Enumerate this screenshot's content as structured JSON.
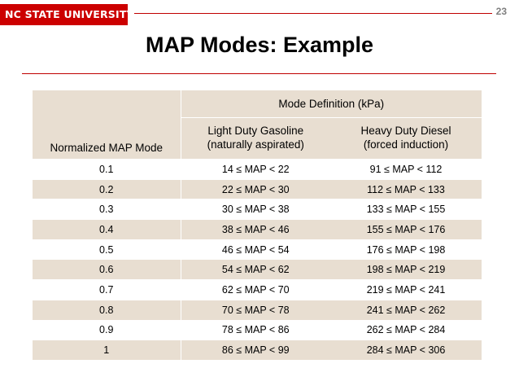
{
  "header": {
    "logo_text": "NC STATE UNIVERSITY",
    "page_number": "23",
    "brand_color": "#cc0000"
  },
  "slide": {
    "title": "MAP Modes:  Example"
  },
  "table": {
    "group_header": "Mode Definition (kPa)",
    "col1_header": "Normalized MAP Mode",
    "col2_header_line1": "Light Duty Gasoline",
    "col2_header_line2": "(naturally aspirated)",
    "col3_header_line1": "Heavy Duty Diesel",
    "col3_header_line2": "(forced induction)",
    "rows": [
      {
        "mode": "0.1",
        "gasoline": "14 ≤ MAP < 22",
        "diesel": "91 ≤ MAP < 112"
      },
      {
        "mode": "0.2",
        "gasoline": "22 ≤ MAP < 30",
        "diesel": "112 ≤ MAP < 133"
      },
      {
        "mode": "0.3",
        "gasoline": "30 ≤ MAP < 38",
        "diesel": "133 ≤ MAP < 155"
      },
      {
        "mode": "0.4",
        "gasoline": "38 ≤ MAP < 46",
        "diesel": "155 ≤ MAP < 176"
      },
      {
        "mode": "0.5",
        "gasoline": "46 ≤ MAP < 54",
        "diesel": "176 ≤ MAP < 198"
      },
      {
        "mode": "0.6",
        "gasoline": "54 ≤ MAP < 62",
        "diesel": "198 ≤ MAP < 219"
      },
      {
        "mode": "0.7",
        "gasoline": "62 ≤ MAP < 70",
        "diesel": "219 ≤ MAP < 241"
      },
      {
        "mode": "0.8",
        "gasoline": "70 ≤ MAP < 78",
        "diesel": "241 ≤ MAP < 262"
      },
      {
        "mode": "0.9",
        "gasoline": "78 ≤ MAP < 86",
        "diesel": "262 ≤ MAP < 284"
      },
      {
        "mode": "1",
        "gasoline": "86 ≤ MAP < 99",
        "diesel": "284 ≤ MAP < 306"
      }
    ]
  }
}
